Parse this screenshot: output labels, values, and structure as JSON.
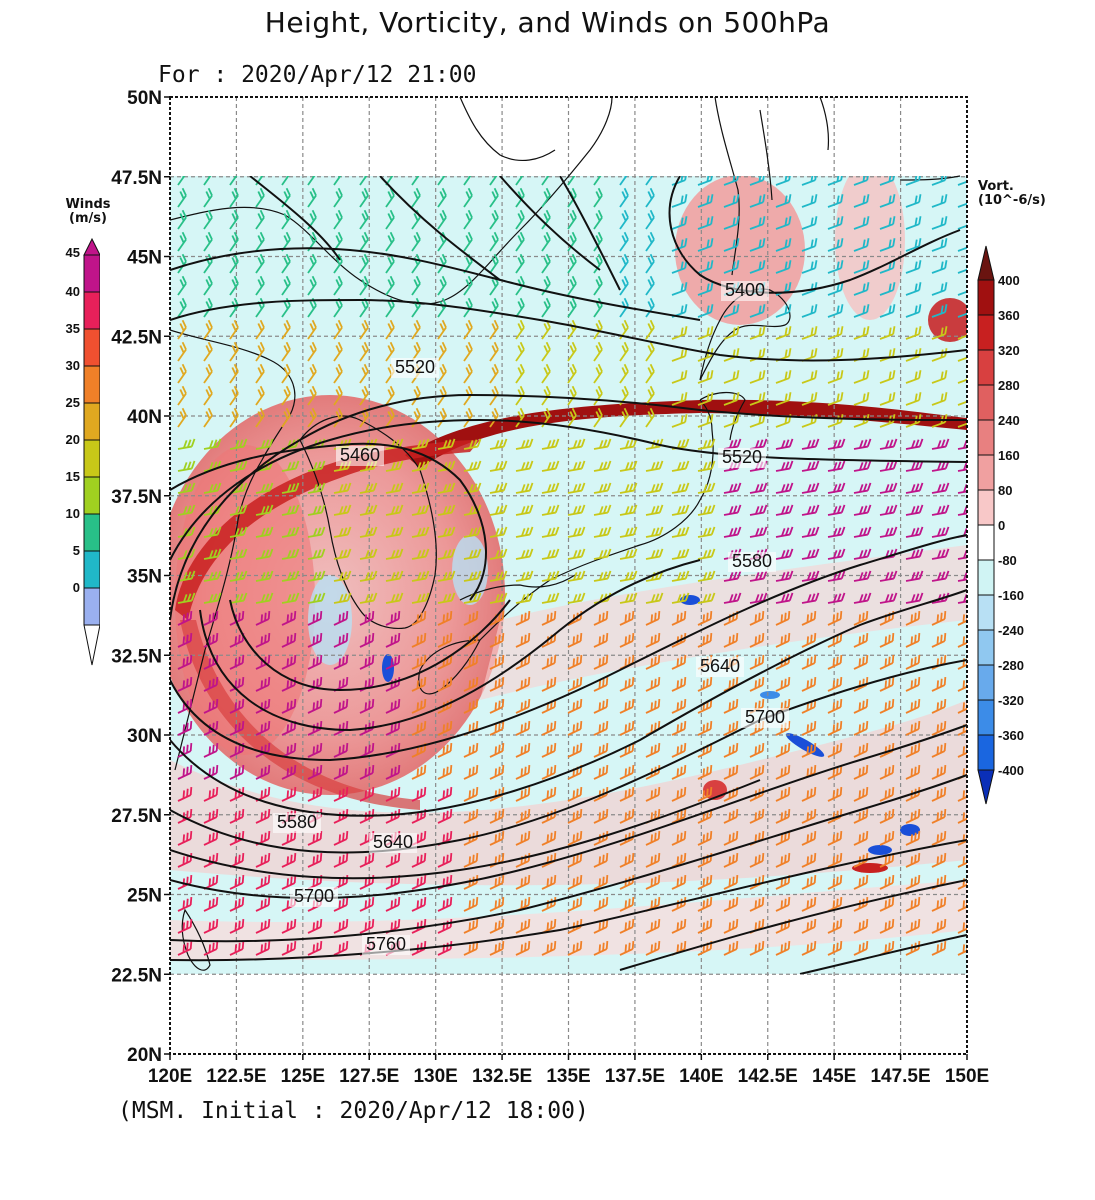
{
  "title": "Height, Vorticity, and Winds on 500hPa",
  "valid_time": "For : 2020/Apr/12 21:00",
  "footer": "(MSM. Initial : 2020/Apr/12 18:00)",
  "map": {
    "lon_labels": [
      "120E",
      "122.5E",
      "125E",
      "127.5E",
      "130E",
      "132.5E",
      "135E",
      "137.5E",
      "140E",
      "142.5E",
      "145E",
      "147.5E",
      "150E"
    ],
    "lat_labels": [
      "50N",
      "47.5N",
      "45N",
      "42.5N",
      "40N",
      "37.5N",
      "35N",
      "32.5N",
      "30N",
      "27.5N",
      "25N",
      "22.5N",
      "20N"
    ],
    "contour_labels": [
      "5400",
      "5460",
      "5520",
      "5520",
      "5580",
      "5580",
      "5640",
      "5640",
      "5700",
      "5700",
      "5760"
    ]
  },
  "winds_bar": {
    "title_line1": "Winds",
    "title_line2": "(m/s)",
    "ticks": [
      "45",
      "40",
      "35",
      "30",
      "25",
      "20",
      "15",
      "10",
      "5",
      "0"
    ],
    "colors": [
      "#c0148a",
      "#e8205a",
      "#f05030",
      "#f08028",
      "#e0a820",
      "#c8c818",
      "#a0d020",
      "#28c088",
      "#20b8c8",
      "#9ab0f0"
    ]
  },
  "vort_bar": {
    "title_line1": "Vort.",
    "title_line2": "(10^-6/s)",
    "ticks": [
      "400",
      "360",
      "320",
      "280",
      "240",
      "160",
      "80",
      "0",
      "-80",
      "-160",
      "-240",
      "-280",
      "-320",
      "-360",
      "-400"
    ],
    "colors": [
      "#a01010",
      "#c82020",
      "#d84040",
      "#e06060",
      "#e88080",
      "#f0a0a0",
      "#f8c8c8",
      "#ffffff",
      "#d0f4f4",
      "#b8e0f4",
      "#90c8f0",
      "#68aaec",
      "#3c8ce8",
      "#1a66e0",
      "#0a3cd0"
    ],
    "top_color": "#6a1410",
    "bottom_color": "#0a2fb8"
  }
}
